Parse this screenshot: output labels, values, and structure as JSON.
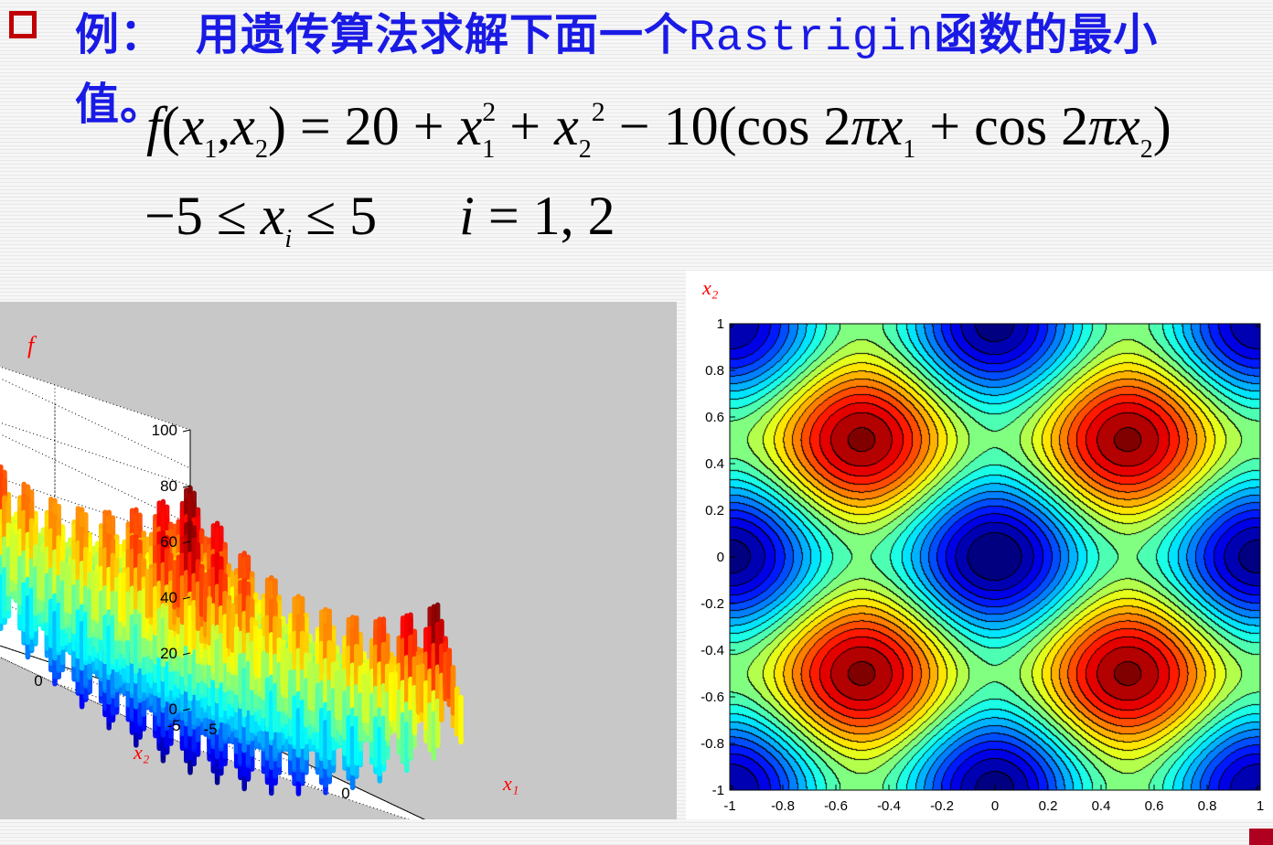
{
  "title": {
    "example_label": "例：",
    "text_cn": "用遗传算法求解下面一个",
    "function_name": "Rastrigin",
    "text_cn_end": "函数的最小",
    "line2": "值。"
  },
  "formula": {
    "f": "f",
    "x": "x",
    "i": "i",
    "sub1": "1",
    "sub2": "2",
    "sup2": "2",
    "pi": "π",
    "open_args": "(",
    "comma": ",",
    "close_args": ")",
    "equals_20": " = 20 + ",
    "plus": " + ",
    "minus_10": " − 10(cos 2",
    "plus_cos": " + cos 2",
    "close_paren": ")",
    "constraint_left": "−5 ≤ ",
    "constraint_right": " ≤ 5",
    "constraint_index": " = 1, 2"
  },
  "colors": {
    "title_blue": "#1a1ae6",
    "bullet_red": "#c00000",
    "axis_label_red": "#ff0000"
  },
  "chart_data": [
    {
      "type": "surface",
      "zlabel": "f",
      "xlabel": "x₁",
      "ylabel": "x₂",
      "z_ticks": [
        "0",
        "20",
        "40",
        "60",
        "80",
        "100"
      ],
      "x_ticks": [
        "-5",
        "0",
        "5"
      ],
      "y_ticks": [
        "-5",
        "0",
        "5"
      ],
      "zlim": [
        0,
        100
      ],
      "xlim": [
        -5,
        5
      ],
      "ylim": [
        -5,
        5
      ],
      "colormap": "jet",
      "grid": true
    },
    {
      "type": "contour",
      "xlabel": "",
      "ylabel": "x₂",
      "x_ticks": [
        "-1",
        "-0.8",
        "-0.6",
        "-0.4",
        "-0.2",
        "0",
        "0.2",
        "0.4",
        "0.6",
        "0.8",
        "1"
      ],
      "y_ticks": [
        "-1",
        "-0.8",
        "-0.6",
        "-0.4",
        "-0.2",
        "0",
        "0.2",
        "0.4",
        "0.6",
        "0.8",
        "1"
      ],
      "xlim": [
        -1,
        1
      ],
      "ylim": [
        -1,
        1
      ],
      "colormap": "jet",
      "filled": true
    }
  ]
}
